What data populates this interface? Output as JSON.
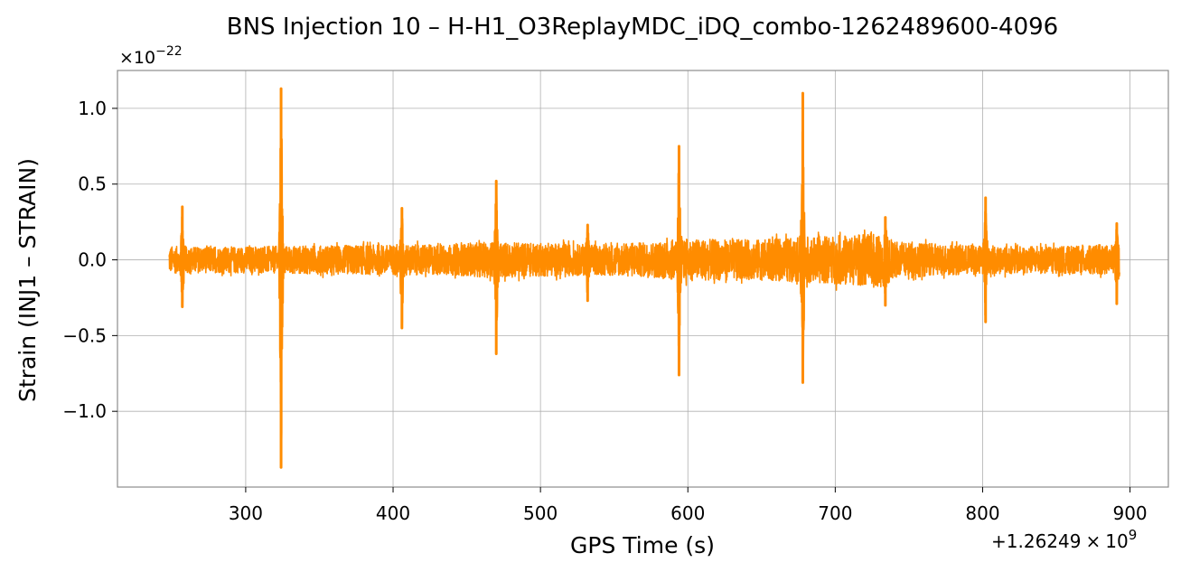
{
  "chart_data": {
    "type": "line",
    "title": "BNS Injection 10 – H-H1_O3ReplayMDC_iDQ_combo-1262489600-4096",
    "xlabel": "GPS Time (s)",
    "ylabel": "Strain (INJ1 – STRAIN)",
    "y_scale_label": "×10",
    "y_scale_exponent": "−22",
    "x_offset_prefix": "+1.26249",
    "x_offset_times": "×",
    "x_offset_base": "10",
    "x_offset_exponent": "9",
    "x_offset": 1262490000,
    "xlim": [
      213,
      926
    ],
    "ylim": [
      -1.5,
      1.25
    ],
    "x_ticks": [
      300,
      400,
      500,
      600,
      700,
      800,
      900
    ],
    "x_tick_labels": [
      "300",
      "400",
      "500",
      "600",
      "700",
      "800",
      "900"
    ],
    "y_ticks": [
      1.0,
      0.5,
      0.0,
      -0.5,
      -1.0
    ],
    "y_tick_labels": [
      "1.0",
      "0.5",
      "0.0",
      "−0.5",
      "−1.0"
    ],
    "grid": true,
    "legend": "none",
    "series": [
      {
        "color": "#ff8c00",
        "x_range": [
          248,
          893
        ],
        "noise_envelope": [
          [
            248,
            0.09
          ],
          [
            280,
            0.085
          ],
          [
            320,
            0.09
          ],
          [
            360,
            0.095
          ],
          [
            400,
            0.1
          ],
          [
            440,
            0.1
          ],
          [
            468,
            0.12
          ],
          [
            500,
            0.11
          ],
          [
            540,
            0.1
          ],
          [
            580,
            0.12
          ],
          [
            595,
            0.14
          ],
          [
            640,
            0.13
          ],
          [
            680,
            0.15
          ],
          [
            700,
            0.16
          ],
          [
            734,
            0.18
          ],
          [
            740,
            0.12
          ],
          [
            780,
            0.1
          ],
          [
            820,
            0.09
          ],
          [
            860,
            0.09
          ],
          [
            893,
            0.1
          ]
        ],
        "spikes": [
          {
            "x": 257,
            "max": 0.35,
            "min": -0.31
          },
          {
            "x": 324,
            "max": 1.13,
            "min": -1.37
          },
          {
            "x": 406,
            "max": 0.34,
            "min": -0.45
          },
          {
            "x": 470,
            "max": 0.52,
            "min": -0.62
          },
          {
            "x": 532,
            "max": 0.23,
            "min": -0.27
          },
          {
            "x": 594,
            "max": 0.75,
            "min": -0.76
          },
          {
            "x": 678,
            "max": 1.1,
            "min": -0.81
          },
          {
            "x": 734,
            "max": 0.28,
            "min": -0.3
          },
          {
            "x": 802,
            "max": 0.41,
            "min": -0.41
          },
          {
            "x": 891,
            "max": 0.24,
            "min": -0.29
          }
        ]
      }
    ]
  }
}
